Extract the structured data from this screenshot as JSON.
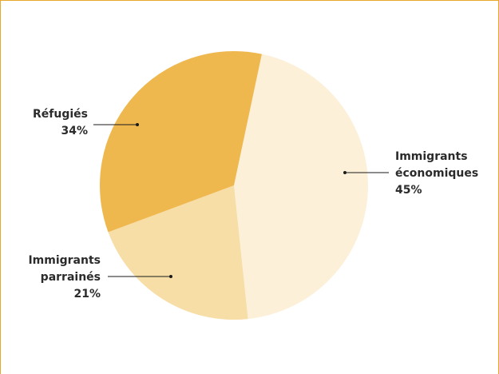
{
  "chart_data": {
    "type": "pie",
    "title": "",
    "slices": [
      {
        "key": "economiques",
        "label_lines": [
          "Immigrants",
          "économiques"
        ],
        "value": 45,
        "value_text": "45%",
        "color": "#fcf0d9"
      },
      {
        "key": "parraines",
        "label_lines": [
          "Immigrants",
          "parrainés"
        ],
        "value": 21,
        "value_text": "21%",
        "color": "#f7dda6"
      },
      {
        "key": "refugies",
        "label_lines": [
          "Réfugiés"
        ],
        "value": 34,
        "value_text": "34%",
        "color": "#efb84f"
      }
    ],
    "start_direction": "slightly right of top, clockwise",
    "border_color": "#e8a72a"
  }
}
